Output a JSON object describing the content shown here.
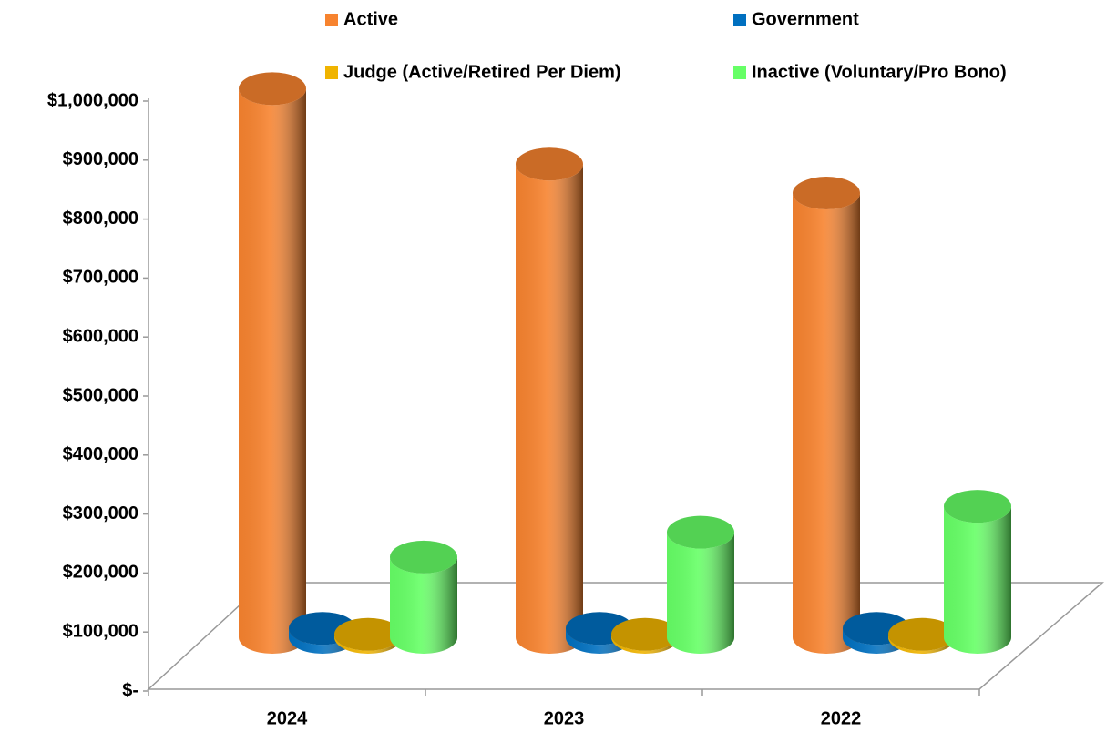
{
  "chart_data": {
    "type": "bar3d",
    "categories": [
      "2024",
      "2023",
      "2022"
    ],
    "series": [
      {
        "name": "Active",
        "color": "#f7832f",
        "values": [
          930000,
          802000,
          753000
        ]
      },
      {
        "name": "Government",
        "color": "#0070c0",
        "values": [
          15000,
          15000,
          15000
        ]
      },
      {
        "name": "Judge (Active/Retired Per Diem)",
        "color": "#f0b400",
        "values": [
          5000,
          5000,
          5000
        ]
      },
      {
        "name": "Inactive (Voluntary/Pro Bono)",
        "color": "#66ff66",
        "values": [
          136000,
          178000,
          222000
        ]
      }
    ],
    "ylim": [
      0,
      1000000
    ],
    "yticks": [
      {
        "value": 0,
        "label": "$-"
      },
      {
        "value": 100000,
        "label": "$100,000"
      },
      {
        "value": 200000,
        "label": "$200,000"
      },
      {
        "value": 300000,
        "label": "$300,000"
      },
      {
        "value": 400000,
        "label": "$400,000"
      },
      {
        "value": 500000,
        "label": "$500,000"
      },
      {
        "value": 600000,
        "label": "$600,000"
      },
      {
        "value": 700000,
        "label": "$700,000"
      },
      {
        "value": 800000,
        "label": "$800,000"
      },
      {
        "value": 900000,
        "label": "$900,000"
      },
      {
        "value": 1000000,
        "label": "$1,000,000"
      }
    ],
    "legend": "top"
  }
}
